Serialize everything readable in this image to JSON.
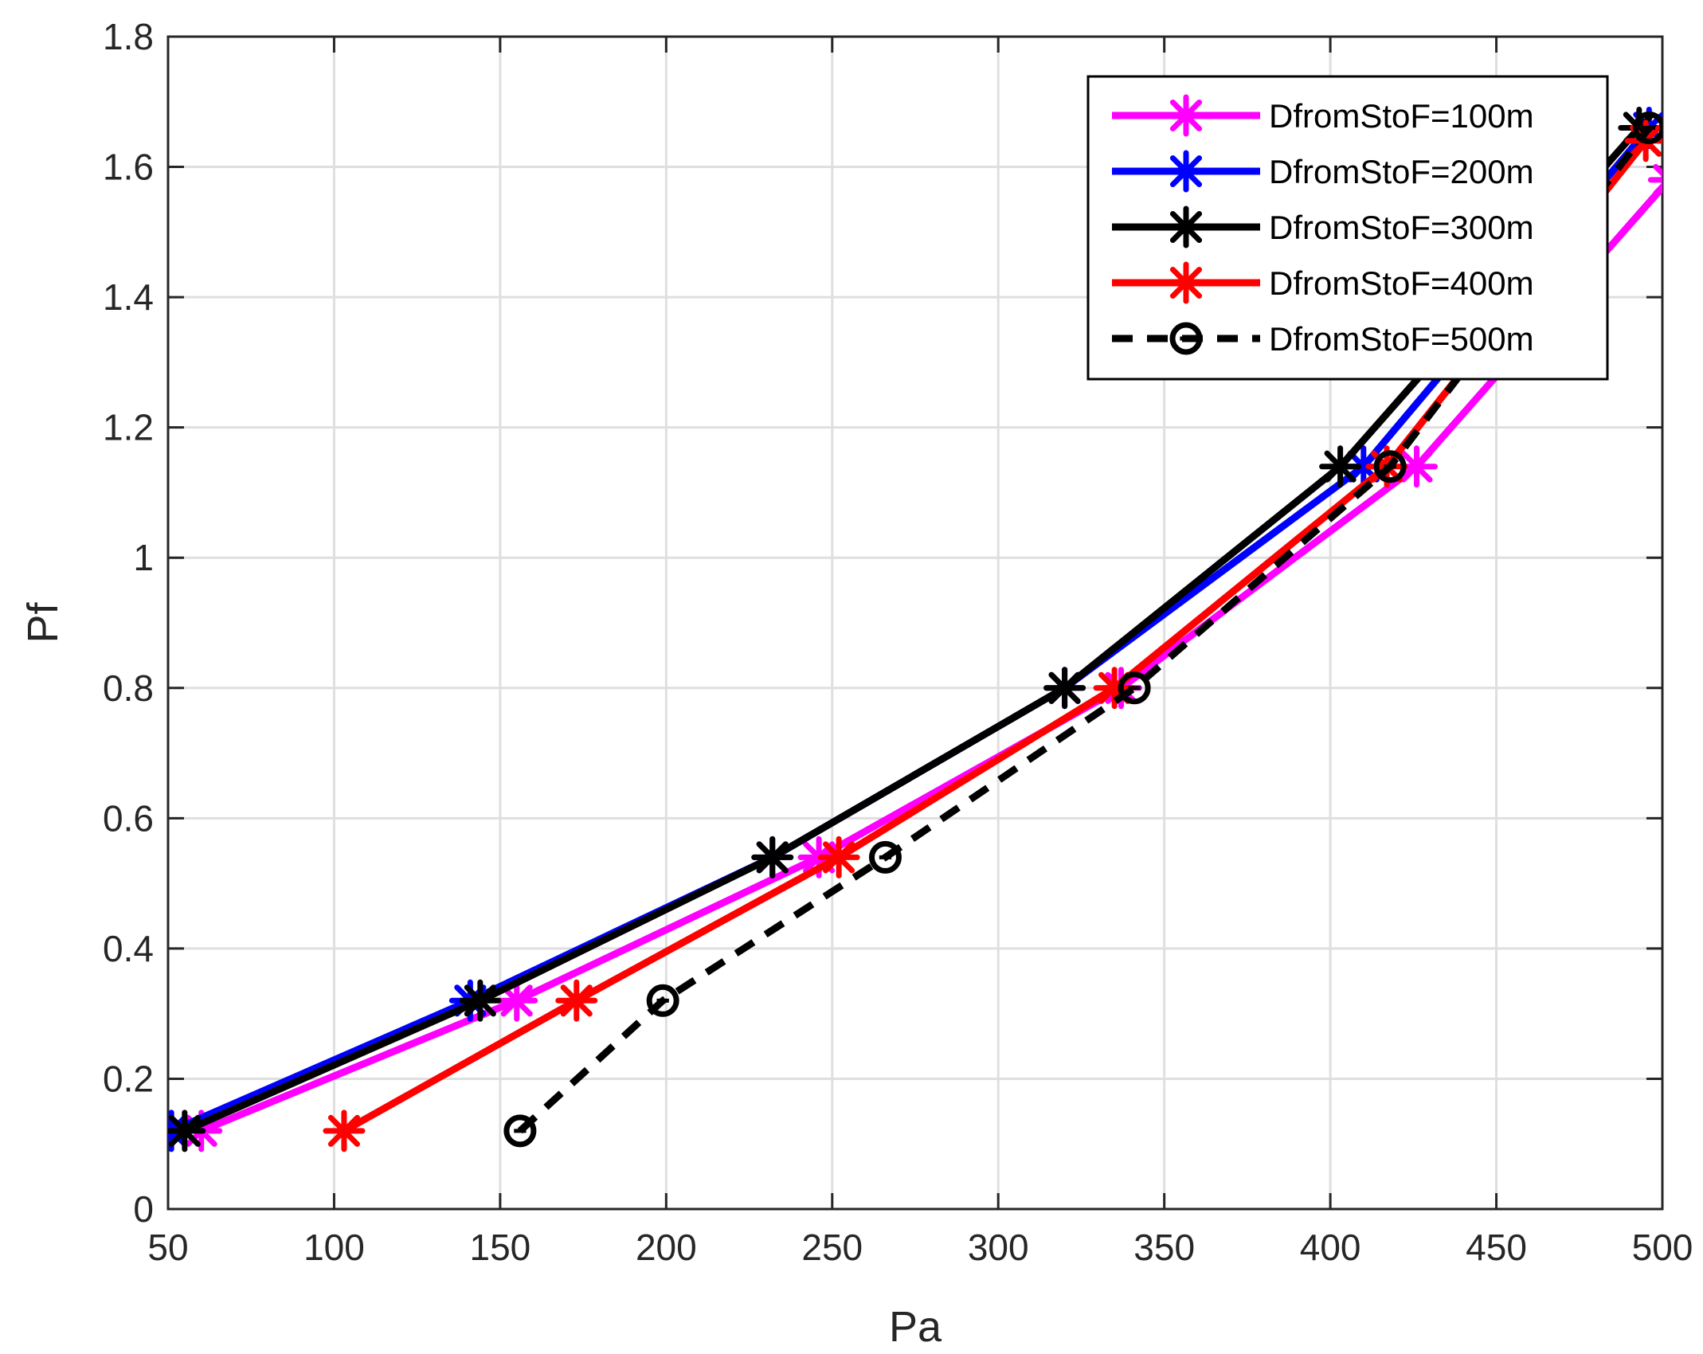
{
  "chart_data": {
    "type": "line",
    "xlabel": "Pa",
    "ylabel": "Pf",
    "xlim": [
      50,
      500
    ],
    "ylim": [
      0,
      1.8
    ],
    "xticks": [
      50,
      100,
      150,
      200,
      250,
      300,
      350,
      400,
      450,
      500
    ],
    "yticks": [
      0,
      0.2,
      0.4,
      0.6,
      0.8,
      1,
      1.2,
      1.4,
      1.6,
      1.8
    ],
    "xtick_labels": [
      "50",
      "100",
      "150",
      "200",
      "250",
      "300",
      "350",
      "400",
      "450",
      "500"
    ],
    "ytick_labels": [
      "0",
      "0.2",
      "0.4",
      "0.6",
      "0.8",
      "1",
      "1.2",
      "1.4",
      "1.6",
      "1.8"
    ],
    "grid": true,
    "legend_position": "top-right",
    "series": [
      {
        "name": "DfromStoF=100m",
        "color": "#ff00ff",
        "marker": "asterisk",
        "line": "solid",
        "x": [
          60,
          155,
          246,
          337,
          426,
          502
        ],
        "y": [
          0.12,
          0.32,
          0.54,
          0.8,
          1.14,
          1.58
        ]
      },
      {
        "name": "DfromStoF=200m",
        "color": "#0000ff",
        "marker": "asterisk",
        "line": "solid",
        "x": [
          51,
          141,
          232,
          320,
          410,
          496
        ],
        "y": [
          0.12,
          0.32,
          0.54,
          0.8,
          1.14,
          1.66
        ]
      },
      {
        "name": "DfromStoF=300m",
        "color": "#000000",
        "marker": "asterisk",
        "line": "solid",
        "x": [
          55,
          144,
          232,
          320,
          403,
          493
        ],
        "y": [
          0.12,
          0.32,
          0.54,
          0.8,
          1.14,
          1.66
        ]
      },
      {
        "name": "DfromStoF=400m",
        "color": "#ff0000",
        "marker": "asterisk",
        "line": "solid",
        "x": [
          103,
          173,
          252,
          335,
          417,
          495
        ],
        "y": [
          0.12,
          0.32,
          0.54,
          0.8,
          1.14,
          1.64
        ]
      },
      {
        "name": "DfromStoF=500m",
        "color": "#000000",
        "marker": "circle",
        "line": "dashed",
        "x": [
          156,
          199,
          266,
          341,
          418,
          496
        ],
        "y": [
          0.12,
          0.32,
          0.54,
          0.8,
          1.14,
          1.66
        ]
      }
    ]
  }
}
